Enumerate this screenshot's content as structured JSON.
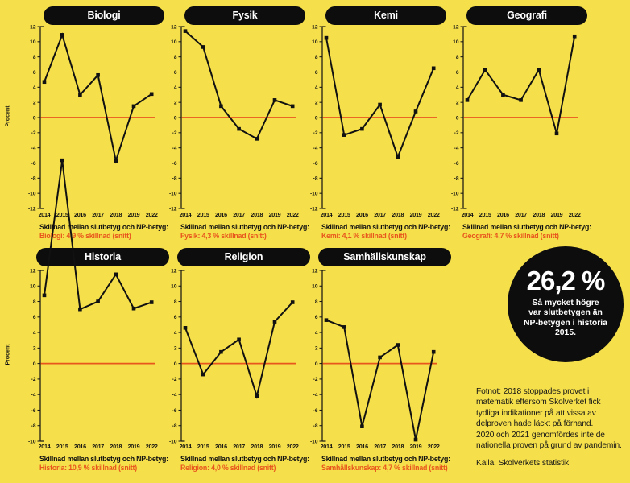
{
  "page": {
    "background": "#F5DF4B",
    "caption_label": "Skillnad mellan slutbetyg och NP-betyg:",
    "y_axis_label": "Procent"
  },
  "colors": {
    "background": "#F5DF4B",
    "line_black": "#111111",
    "zero_line": "#E8551D",
    "summary_red": "#E8551D",
    "pill_black": "#0D0D0D",
    "text_white": "#FFFFFF"
  },
  "chart_data": [
    {
      "type": "line",
      "id": "biologi",
      "title": "Biologi",
      "x": [
        "2014",
        "2015",
        "2016",
        "2017",
        "2018",
        "2019",
        "2022"
      ],
      "values": [
        4.7,
        10.9,
        3.0,
        5.6,
        -5.7,
        1.5,
        3.1
      ],
      "ylim": [
        -12,
        12
      ],
      "ytick_step": 2,
      "ylabel": "Procent",
      "zero_line": true,
      "summary": "Biologi: 4,9 % skillnad (snitt)"
    },
    {
      "type": "line",
      "id": "fysik",
      "title": "Fysik",
      "x": [
        "2014",
        "2015",
        "2016",
        "2017",
        "2018",
        "2019",
        "2022"
      ],
      "values": [
        11.4,
        9.3,
        1.5,
        -1.5,
        -2.8,
        2.3,
        1.5
      ],
      "ylim": [
        -12,
        12
      ],
      "ytick_step": 2,
      "ylabel": "",
      "zero_line": true,
      "summary": "Fysik: 4,3 % skillnad (snitt)"
    },
    {
      "type": "line",
      "id": "kemi",
      "title": "Kemi",
      "x": [
        "2014",
        "2015",
        "2016",
        "2017",
        "2018",
        "2019",
        "2022"
      ],
      "values": [
        10.5,
        -2.3,
        -1.5,
        1.7,
        -5.2,
        0.8,
        6.5
      ],
      "ylim": [
        -12,
        12
      ],
      "ytick_step": 2,
      "ylabel": "",
      "zero_line": true,
      "summary": "Kemi: 4,1 % skillnad (snitt)"
    },
    {
      "type": "line",
      "id": "geografi",
      "title": "Geografi",
      "x": [
        "2014",
        "2015",
        "2016",
        "2017",
        "2018",
        "2019",
        "2022"
      ],
      "values": [
        2.3,
        6.3,
        3.0,
        2.3,
        6.3,
        -2.1,
        10.7
      ],
      "ylim": [
        -12,
        12
      ],
      "ytick_step": 2,
      "ylabel": "",
      "zero_line": true,
      "summary": "Geografi: 4,7 % skillnad (snitt)"
    },
    {
      "type": "line",
      "id": "historia",
      "title": "Historia",
      "x": [
        "2014",
        "2015",
        "2016",
        "2017",
        "2018",
        "2019",
        "2022"
      ],
      "values": [
        8.8,
        26.2,
        7.0,
        8.0,
        11.5,
        7.1,
        7.9
      ],
      "ylim": [
        -10,
        12
      ],
      "ytick_step": 2,
      "ylabel": "Procent",
      "zero_line": true,
      "summary": "Historia: 10,9 % skillnad (snitt)"
    },
    {
      "type": "line",
      "id": "religion",
      "title": "Religion",
      "x": [
        "2014",
        "2015",
        "2016",
        "2017",
        "2018",
        "2019",
        "2022"
      ],
      "values": [
        4.6,
        -1.4,
        1.5,
        3.1,
        -4.2,
        5.4,
        7.9
      ],
      "ylim": [
        -10,
        12
      ],
      "ytick_step": 2,
      "ylabel": "",
      "zero_line": true,
      "summary": "Religion: 4,0 % skillnad (snitt)"
    },
    {
      "type": "line",
      "id": "samhallskunskap",
      "title": "Samhällskunskap",
      "x": [
        "2014",
        "2015",
        "2016",
        "2017",
        "2018",
        "2019",
        "2022"
      ],
      "values": [
        5.6,
        4.7,
        -8.1,
        0.8,
        2.4,
        -9.8,
        1.5
      ],
      "ylim": [
        -10,
        12
      ],
      "ytick_step": 2,
      "ylabel": "",
      "zero_line": true,
      "summary": "Samhällskunskap: 4,7 % skillnad (snitt)"
    }
  ],
  "badge": {
    "value": "26,2 %",
    "text": "Så mycket högre\nvar slutbetygen än\nNP-betygen i historia\n2015."
  },
  "footnote": {
    "text": "Fotnot: 2018 stoppades provet i\nmatematik eftersom Skolverket fick\ntydliga indikationer på att vissa av\ndelproven hade läckt på förhand.\n2020 och 2021 genomfördes inte de\nnationella proven på grund av pandemin.",
    "source": "Källa: Skolverkets statistik"
  }
}
